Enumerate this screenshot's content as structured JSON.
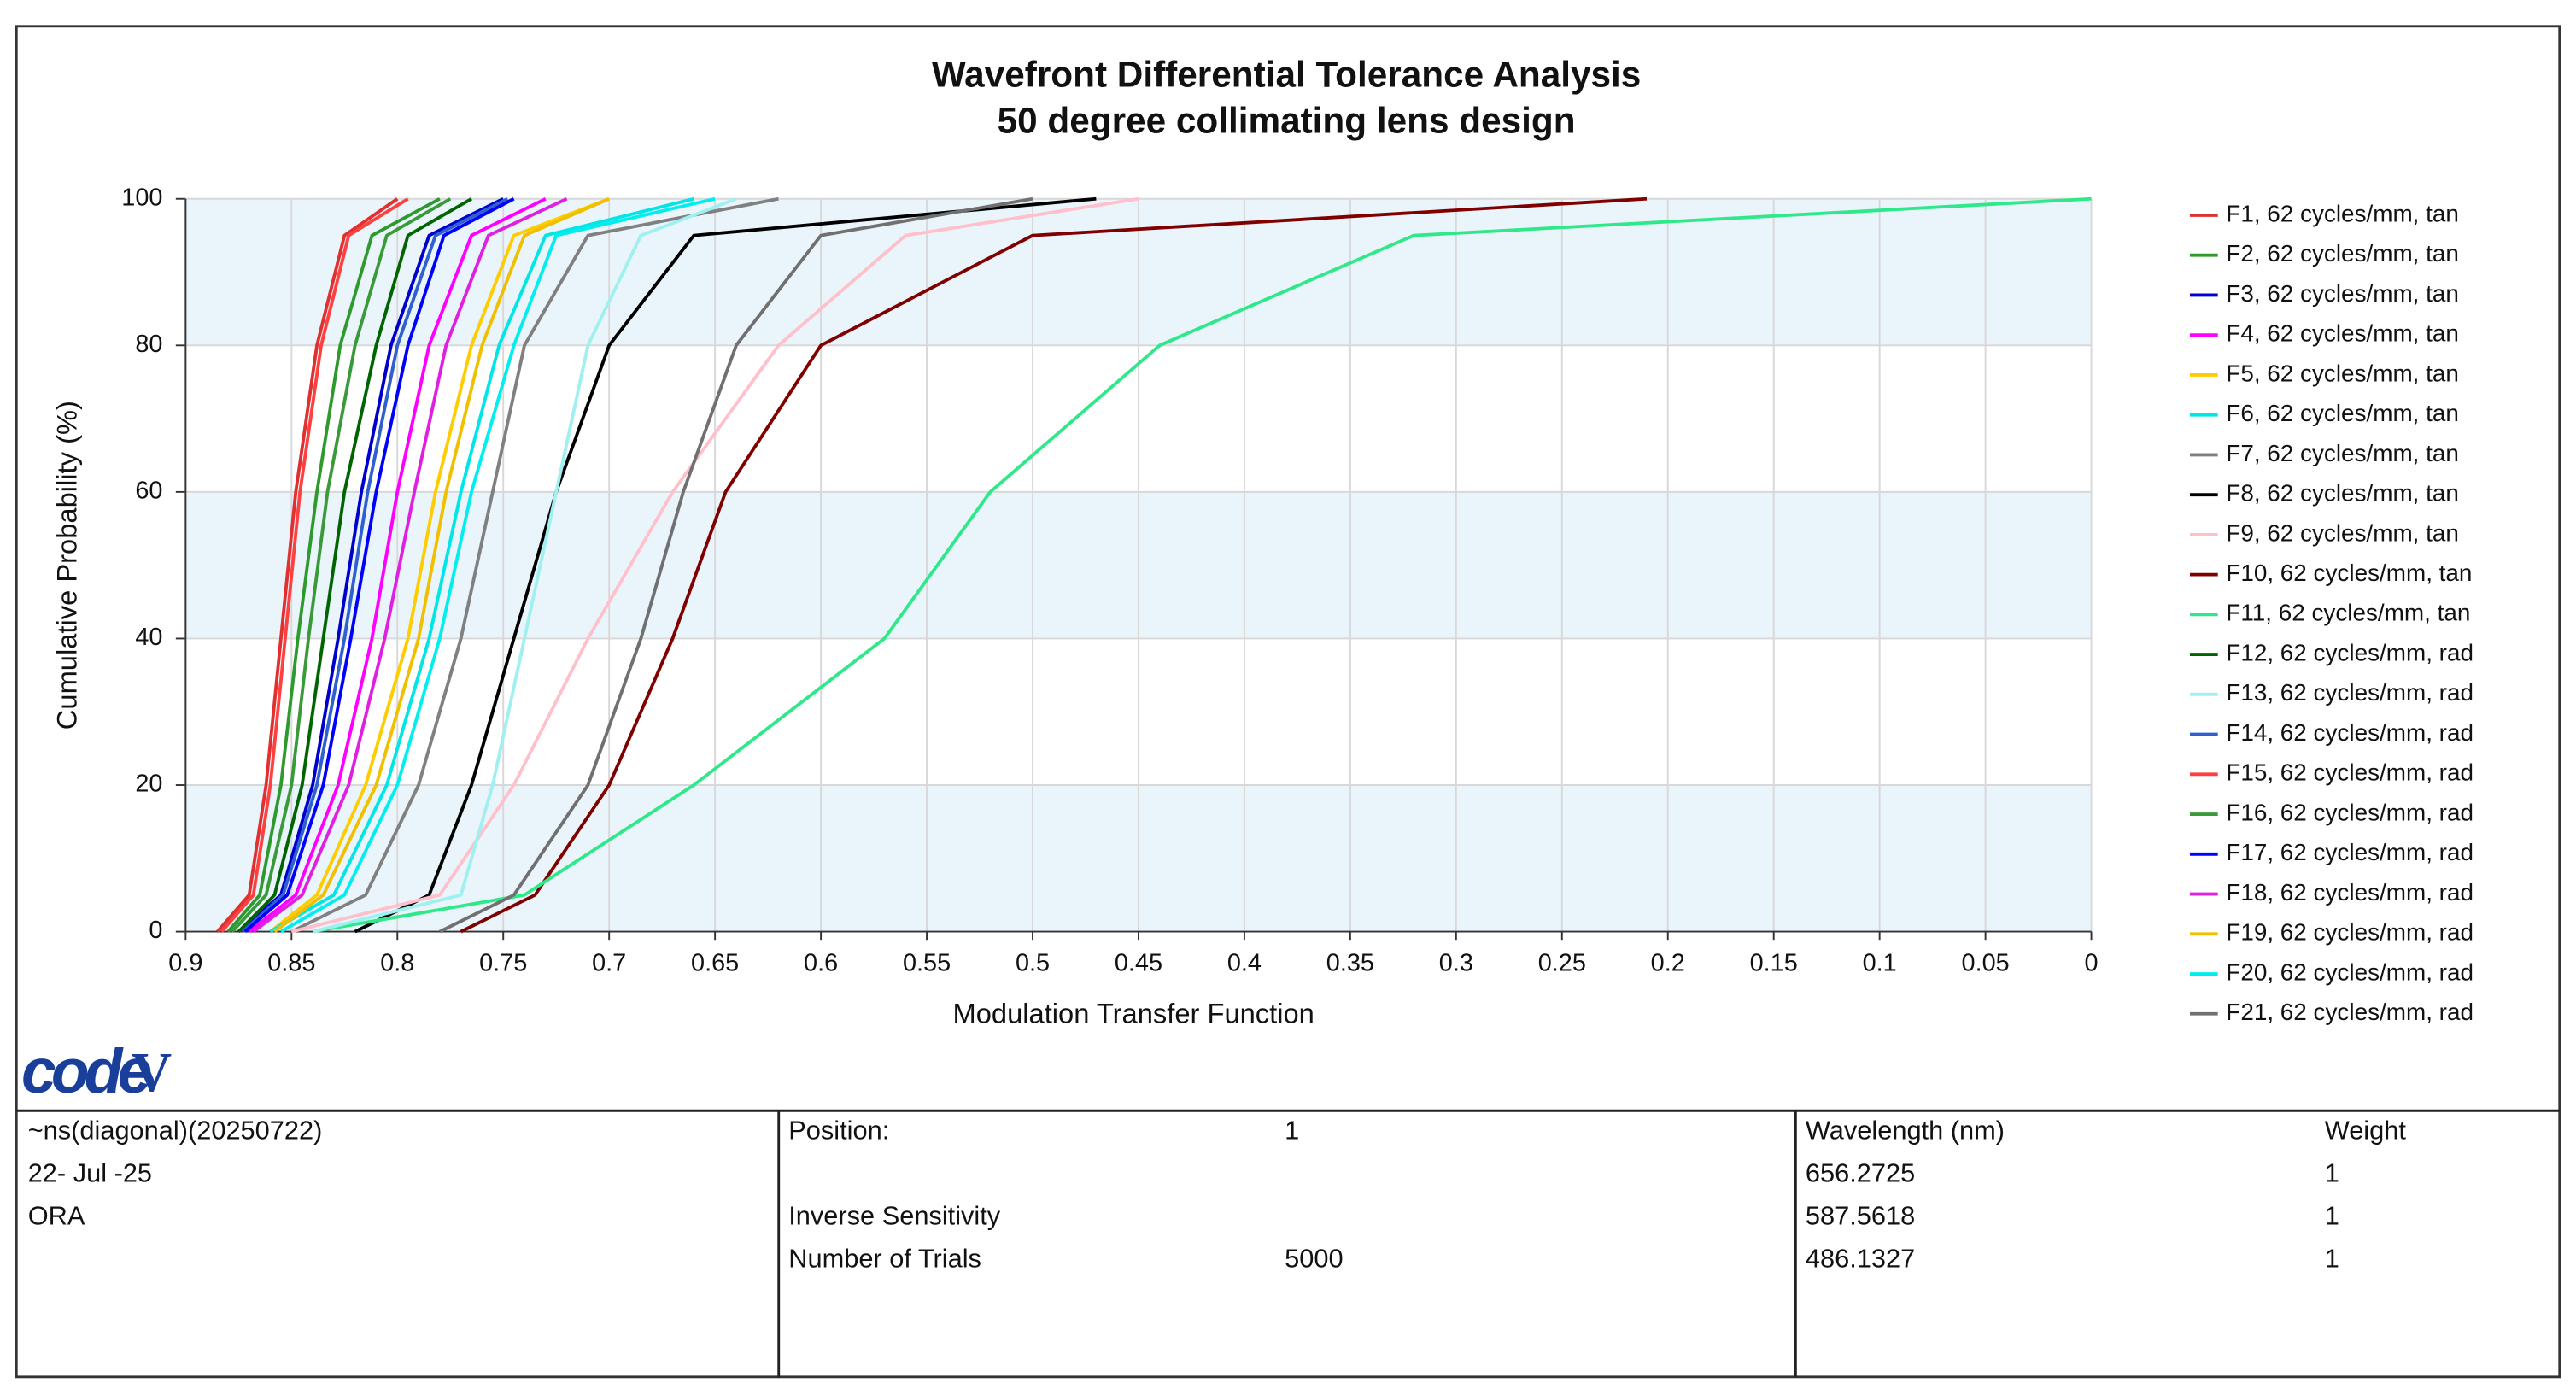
{
  "chart_data": {
    "type": "line",
    "title": "Wavefront Differential Tolerance Analysis",
    "subtitle": "50 degree collimating lens design",
    "x_label": "Modulation Transfer Function",
    "y_label": "Cumulative Probability (%)",
    "xlim": [
      0.9,
      0
    ],
    "ylim": [
      0,
      100
    ],
    "xticks": [
      0.9,
      0.85,
      0.8,
      0.75,
      0.7,
      0.65,
      0.6,
      0.55,
      0.5,
      0.45,
      0.4,
      0.35,
      0.3,
      0.25,
      0.2,
      0.15,
      0.1,
      0.05,
      0
    ],
    "yticks": [
      0,
      20,
      40,
      60,
      80,
      100
    ],
    "grid": true,
    "legend": "right",
    "series": [
      {
        "name": "F1, 62 cycles/mm, tan",
        "color": "#e03030",
        "x": [
          0.885,
          0.87,
          0.862,
          0.855,
          0.848,
          0.838,
          0.825,
          0.8
        ],
        "values": [
          0,
          5,
          20,
          40,
          60,
          80,
          95,
          100
        ]
      },
      {
        "name": "F2, 62 cycles/mm, tan",
        "color": "#2e9a2e",
        "x": [
          0.88,
          0.865,
          0.855,
          0.847,
          0.838,
          0.827,
          0.812,
          0.78
        ],
        "values": [
          0,
          5,
          20,
          40,
          60,
          80,
          95,
          100
        ]
      },
      {
        "name": "F3, 62 cycles/mm, tan",
        "color": "#0000cc",
        "x": [
          0.875,
          0.855,
          0.84,
          0.828,
          0.817,
          0.803,
          0.785,
          0.75
        ],
        "values": [
          0,
          5,
          20,
          40,
          60,
          80,
          95,
          100
        ]
      },
      {
        "name": "F4, 62 cycles/mm, tan",
        "color": "#ff00ff",
        "x": [
          0.87,
          0.848,
          0.828,
          0.812,
          0.8,
          0.785,
          0.765,
          0.73
        ],
        "values": [
          0,
          5,
          20,
          40,
          60,
          80,
          95,
          100
        ]
      },
      {
        "name": "F5, 62 cycles/mm, tan",
        "color": "#ffcc00",
        "x": [
          0.86,
          0.838,
          0.815,
          0.795,
          0.782,
          0.765,
          0.745,
          0.7
        ],
        "values": [
          0,
          5,
          20,
          40,
          60,
          80,
          95,
          100
        ]
      },
      {
        "name": "F6, 62 cycles/mm, tan",
        "color": "#00e5e5",
        "x": [
          0.86,
          0.83,
          0.805,
          0.785,
          0.77,
          0.752,
          0.73,
          0.66
        ],
        "values": [
          0,
          5,
          20,
          40,
          60,
          80,
          95,
          100
        ]
      },
      {
        "name": "F7, 62 cycles/mm, tan",
        "color": "#808080",
        "x": [
          0.85,
          0.815,
          0.79,
          0.77,
          0.755,
          0.74,
          0.71,
          0.62
        ],
        "values": [
          0,
          5,
          20,
          40,
          60,
          80,
          95,
          100
        ]
      },
      {
        "name": "F8, 62 cycles/mm, tan",
        "color": "#000000",
        "x": [
          0.82,
          0.785,
          0.765,
          0.745,
          0.725,
          0.7,
          0.66,
          0.47
        ],
        "values": [
          0,
          5,
          20,
          40,
          60,
          80,
          95,
          100
        ]
      },
      {
        "name": "F9, 62 cycles/mm, tan",
        "color": "#ffc0cb",
        "x": [
          0.85,
          0.78,
          0.745,
          0.71,
          0.67,
          0.62,
          0.56,
          0.45
        ],
        "values": [
          0,
          5,
          20,
          40,
          60,
          80,
          95,
          100
        ]
      },
      {
        "name": "F10, 62 cycles/mm, tan",
        "color": "#800000",
        "x": [
          0.77,
          0.735,
          0.7,
          0.67,
          0.645,
          0.6,
          0.5,
          0.21
        ],
        "values": [
          0,
          5,
          20,
          40,
          60,
          80,
          95,
          100
        ]
      },
      {
        "name": "F11, 62 cycles/mm, tan",
        "color": "#2ee88a",
        "x": [
          0.84,
          0.74,
          0.66,
          0.57,
          0.52,
          0.44,
          0.32,
          0
        ],
        "values": [
          0,
          5,
          20,
          40,
          60,
          80,
          95,
          100
        ]
      },
      {
        "name": "F12, 62 cycles/mm, rad",
        "color": "#006400",
        "x": [
          0.875,
          0.858,
          0.845,
          0.835,
          0.825,
          0.81,
          0.795,
          0.765
        ],
        "values": [
          0,
          5,
          20,
          40,
          60,
          80,
          95,
          100
        ]
      },
      {
        "name": "F13, 62 cycles/mm, rad",
        "color": "#a0f0f0",
        "x": [
          0.84,
          0.77,
          0.755,
          0.74,
          0.725,
          0.71,
          0.685,
          0.64
        ],
        "values": [
          0,
          5,
          20,
          40,
          60,
          80,
          95,
          100
        ]
      },
      {
        "name": "F14, 62 cycles/mm, rad",
        "color": "#3060d0",
        "x": [
          0.873,
          0.854,
          0.838,
          0.825,
          0.814,
          0.8,
          0.782,
          0.748
        ],
        "values": [
          0,
          5,
          20,
          40,
          60,
          80,
          95,
          100
        ]
      },
      {
        "name": "F15, 62 cycles/mm, rad",
        "color": "#ff4040",
        "x": [
          0.883,
          0.868,
          0.86,
          0.853,
          0.846,
          0.836,
          0.823,
          0.795
        ],
        "values": [
          0,
          5,
          20,
          40,
          60,
          80,
          95,
          100
        ]
      },
      {
        "name": "F16, 62 cycles/mm, rad",
        "color": "#3a9a3a",
        "x": [
          0.878,
          0.862,
          0.85,
          0.842,
          0.833,
          0.82,
          0.805,
          0.775
        ],
        "values": [
          0,
          5,
          20,
          40,
          60,
          80,
          95,
          100
        ]
      },
      {
        "name": "F17, 62 cycles/mm, rad",
        "color": "#0000ff",
        "x": [
          0.872,
          0.852,
          0.835,
          0.822,
          0.81,
          0.795,
          0.778,
          0.745
        ],
        "values": [
          0,
          5,
          20,
          40,
          60,
          80,
          95,
          100
        ]
      },
      {
        "name": "F18, 62 cycles/mm, rad",
        "color": "#e020e0",
        "x": [
          0.868,
          0.845,
          0.823,
          0.806,
          0.792,
          0.777,
          0.757,
          0.72
        ],
        "values": [
          0,
          5,
          20,
          40,
          60,
          80,
          95,
          100
        ]
      },
      {
        "name": "F19, 62 cycles/mm, rad",
        "color": "#f0c000",
        "x": [
          0.858,
          0.835,
          0.81,
          0.79,
          0.777,
          0.76,
          0.74,
          0.7
        ],
        "values": [
          0,
          5,
          20,
          40,
          60,
          80,
          95,
          100
        ]
      },
      {
        "name": "F20, 62 cycles/mm, rad",
        "color": "#00eeee",
        "x": [
          0.855,
          0.825,
          0.8,
          0.78,
          0.765,
          0.745,
          0.725,
          0.65
        ],
        "values": [
          0,
          5,
          20,
          40,
          60,
          80,
          95,
          100
        ]
      },
      {
        "name": "F21, 62 cycles/mm, rad",
        "color": "#707070",
        "x": [
          0.78,
          0.745,
          0.71,
          0.685,
          0.665,
          0.64,
          0.6,
          0.5
        ],
        "values": [
          0,
          5,
          20,
          40,
          60,
          80,
          95,
          100
        ]
      }
    ]
  },
  "logo": [
    "code",
    "V"
  ],
  "footer": {
    "left": [
      "~ns(diagonal)(20250722)",
      "22- Jul -25",
      "ORA"
    ],
    "position_label": "Position:",
    "position_value": 1,
    "inverse_sensitivity": "Inverse Sensitivity",
    "trials_label": "Number of Trials",
    "trials_value": 5000,
    "wavelength_header": "Wavelength (nm)",
    "weight_header": "Weight",
    "wavelengths": [
      656.2725,
      587.5618,
      486.1327
    ],
    "weights": [
      1,
      1,
      1
    ]
  }
}
